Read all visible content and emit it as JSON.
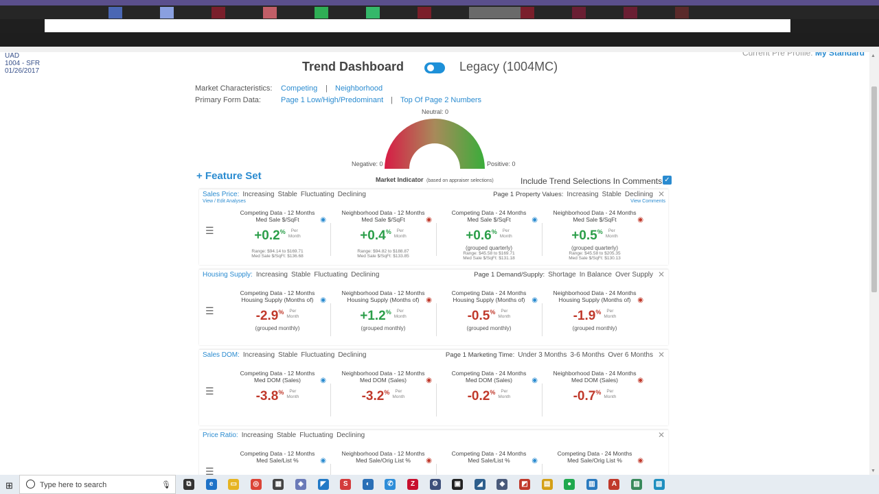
{
  "browser": {
    "tab_colors": [
      "#4a67b4",
      "#8aa0e0",
      "#7a1f2b",
      "#c15e67",
      "#2fae55",
      "#35b86a",
      "#7b1f2a",
      "#6a6a6a",
      "#7a1f2b",
      "#6a1f33",
      "#6a1f33",
      "#5a2a2a"
    ]
  },
  "header": {
    "uad_lines": [
      "UAD",
      "1004 - SFR",
      "01/26/2017"
    ],
    "profile_label": "Current Pre Profile:",
    "profile_value": "My Standard"
  },
  "dashboard": {
    "title": "Trend Dashboard",
    "legacy_label": "Legacy (1004MC)",
    "market_characteristics_label": "Market Characteristics:",
    "competing_link": "Competing",
    "separator": "|",
    "neighborhood_link": "Neighborhood",
    "primary_form_label": "Primary Form Data:",
    "page1_link": "Page 1 Low/High/Predominant",
    "top_page_link": "Top Of Page 2 Numbers"
  },
  "gauge": {
    "neutral_label": "Neutral: 0",
    "negative_label": "Negative: 0",
    "positive_label": "Positive: 0",
    "title": "Market Indicator",
    "subtitle": "(based on appraiser selections)",
    "neutral": 0,
    "negative": 0,
    "positive": 0
  },
  "feature_set": {
    "label": "+ Feature Set",
    "include_label": "Include Trend Selections In Comments",
    "include_checked": true
  },
  "panels": [
    {
      "title": "Sales Price:",
      "options": [
        "Increasing",
        "Stable",
        "Fluctuating",
        "Declining"
      ],
      "right_label": "Page 1 Property Values:",
      "right_options": [
        "Increasing",
        "Stable",
        "Declining"
      ],
      "left_sublink": "View / Edit Analyses",
      "right_sublink": "View Comments",
      "columns": [
        {
          "title": "Competing Data - 12 Months",
          "subtitle": "Med Sale $/SqFt",
          "value": "+0.2",
          "sign": "pos",
          "eye": "blue",
          "sub": "",
          "range": "Range: $94.14 to $169.71",
          "median": "Med Sale $/SqFt: $136.68"
        },
        {
          "title": "Neighborhood Data - 12 Months",
          "subtitle": "Med Sale $/SqFt",
          "value": "+0.4",
          "sign": "pos",
          "eye": "red",
          "sub": "",
          "range": "Range: $94.82 to $188.87",
          "median": "Med Sale $/SqFt: $133.85"
        },
        {
          "title": "Competing Data - 24 Months",
          "subtitle": "Med Sale $/SqFt",
          "value": "+0.6",
          "sign": "pos",
          "eye": "blue",
          "sub": "(grouped quarterly)",
          "range": "Range: $45.58 to $169.71",
          "median": "Med Sale $/SqFt: $131.18"
        },
        {
          "title": "Neighborhood Data - 24 Months",
          "subtitle": "Med Sale $/SqFt",
          "value": "+0.5",
          "sign": "pos",
          "eye": "red",
          "sub": "(grouped quarterly)",
          "range": "Range: $45.58 to $205.35",
          "median": "Med Sale $/SqFt: $130.13"
        }
      ]
    },
    {
      "title": "Housing Supply:",
      "options": [
        "Increasing",
        "Stable",
        "Fluctuating",
        "Declining"
      ],
      "right_label": "Page 1 Demand/Supply:",
      "right_options": [
        "Shortage",
        "In Balance",
        "Over Supply"
      ],
      "columns": [
        {
          "title": "Competing Data - 12 Months",
          "subtitle": "Housing Supply (Months of)",
          "value": "-2.9",
          "sign": "neg",
          "eye": "blue",
          "sub": "(grouped monthly)"
        },
        {
          "title": "Neighborhood Data - 12 Months",
          "subtitle": "Housing Supply (Months of)",
          "value": "+1.2",
          "sign": "pos",
          "eye": "red",
          "sub": "(grouped monthly)"
        },
        {
          "title": "Competing Data - 24 Months",
          "subtitle": "Housing Supply (Months of)",
          "value": "-0.5",
          "sign": "neg",
          "eye": "blue",
          "sub": "(grouped monthly)"
        },
        {
          "title": "Neighborhood Data - 24 Months",
          "subtitle": "Housing Supply (Months of)",
          "value": "-1.9",
          "sign": "neg",
          "eye": "red",
          "sub": "(grouped monthly)"
        }
      ]
    },
    {
      "title": "Sales DOM:",
      "options": [
        "Increasing",
        "Stable",
        "Fluctuating",
        "Declining"
      ],
      "right_label": "Page 1 Marketing Time:",
      "right_options": [
        "Under 3 Months",
        "3-6 Months",
        "Over 6 Months"
      ],
      "columns": [
        {
          "title": "Competing Data - 12 Months",
          "subtitle": "Med DOM (Sales)",
          "value": "-3.8",
          "sign": "neg",
          "eye": "blue",
          "sub": ""
        },
        {
          "title": "Neighborhood Data - 12 Months",
          "subtitle": "Med DOM (Sales)",
          "value": "-3.2",
          "sign": "neg",
          "eye": "red",
          "sub": ""
        },
        {
          "title": "Competing Data - 24 Months",
          "subtitle": "Med DOM (Sales)",
          "value": "-0.2",
          "sign": "neg",
          "eye": "blue",
          "sub": ""
        },
        {
          "title": "Neighborhood Data - 24 Months",
          "subtitle": "Med DOM (Sales)",
          "value": "-0.7",
          "sign": "neg",
          "eye": "red",
          "sub": ""
        }
      ]
    },
    {
      "title": "Price Ratio:",
      "options": [
        "Increasing",
        "Stable",
        "Fluctuating",
        "Declining"
      ],
      "right_label": "",
      "right_options": [],
      "columns": [
        {
          "title": "Competing Data - 12 Months",
          "subtitle": "Med Sale/List %",
          "value": "",
          "sign": "neu",
          "eye": "blue",
          "sub": ""
        },
        {
          "title": "Neighborhood Data - 12 Months",
          "subtitle": "Med Sale/Orig List %",
          "value": "",
          "sign": "neu",
          "eye": "red",
          "sub": ""
        },
        {
          "title": "Competing Data - 24 Months",
          "subtitle": "Med Sale/List %",
          "value": "",
          "sign": "neu",
          "eye": "blue",
          "sub": ""
        },
        {
          "title": "Competing Data - 24 Months",
          "subtitle": "Med Sale/Orig List %",
          "value": "",
          "sign": "neu",
          "eye": "red",
          "sub": ""
        }
      ]
    }
  ],
  "common": {
    "percent": "%",
    "per": "Per",
    "month": "Month",
    "close": "✕",
    "eye_glyph": "◉",
    "drag_glyph": "☰"
  },
  "taskbar": {
    "search_placeholder": "Type here to search",
    "icons": [
      {
        "name": "task-view-icon",
        "color": "#333333",
        "glyph": "⧉"
      },
      {
        "name": "edge-icon",
        "color": "#1e72c7",
        "glyph": "e"
      },
      {
        "name": "file-explorer-icon",
        "color": "#e6b422",
        "glyph": "▭"
      },
      {
        "name": "chrome-icon",
        "color": "#db4437",
        "glyph": "◎"
      },
      {
        "name": "calculator-icon",
        "color": "#444444",
        "glyph": "▦"
      },
      {
        "name": "app-icon-1",
        "color": "#6a7ab8",
        "glyph": "◈"
      },
      {
        "name": "vscode-icon",
        "color": "#2179c6",
        "glyph": "◤"
      },
      {
        "name": "app-icon-2",
        "color": "#d33b3b",
        "glyph": "S"
      },
      {
        "name": "app-icon-3",
        "color": "#2a6fb6",
        "glyph": "◐"
      },
      {
        "name": "phone-icon",
        "color": "#2e8dd8",
        "glyph": "✆"
      },
      {
        "name": "filezilla-icon",
        "color": "#c8102e",
        "glyph": "Z"
      },
      {
        "name": "app-icon-4",
        "color": "#3c4f7a",
        "glyph": "⚙"
      },
      {
        "name": "app-icon-5",
        "color": "#222222",
        "glyph": "▣"
      },
      {
        "name": "app-icon-6",
        "color": "#2d5e8c",
        "glyph": "◢"
      },
      {
        "name": "app-icon-7",
        "color": "#4a5a7a",
        "glyph": "◆"
      },
      {
        "name": "app-icon-8",
        "color": "#c0392b",
        "glyph": "◩"
      },
      {
        "name": "app-icon-9",
        "color": "#d4a017",
        "glyph": "▤"
      },
      {
        "name": "app-icon-10",
        "color": "#1fa84e",
        "glyph": "●"
      },
      {
        "name": "app-icon-11",
        "color": "#2a7abf",
        "glyph": "▥"
      },
      {
        "name": "acrobat-icon",
        "color": "#c0392b",
        "glyph": "A"
      },
      {
        "name": "app-icon-12",
        "color": "#3a8a5c",
        "glyph": "▨"
      },
      {
        "name": "app-icon-13",
        "color": "#1f8fbf",
        "glyph": "▧"
      }
    ]
  }
}
